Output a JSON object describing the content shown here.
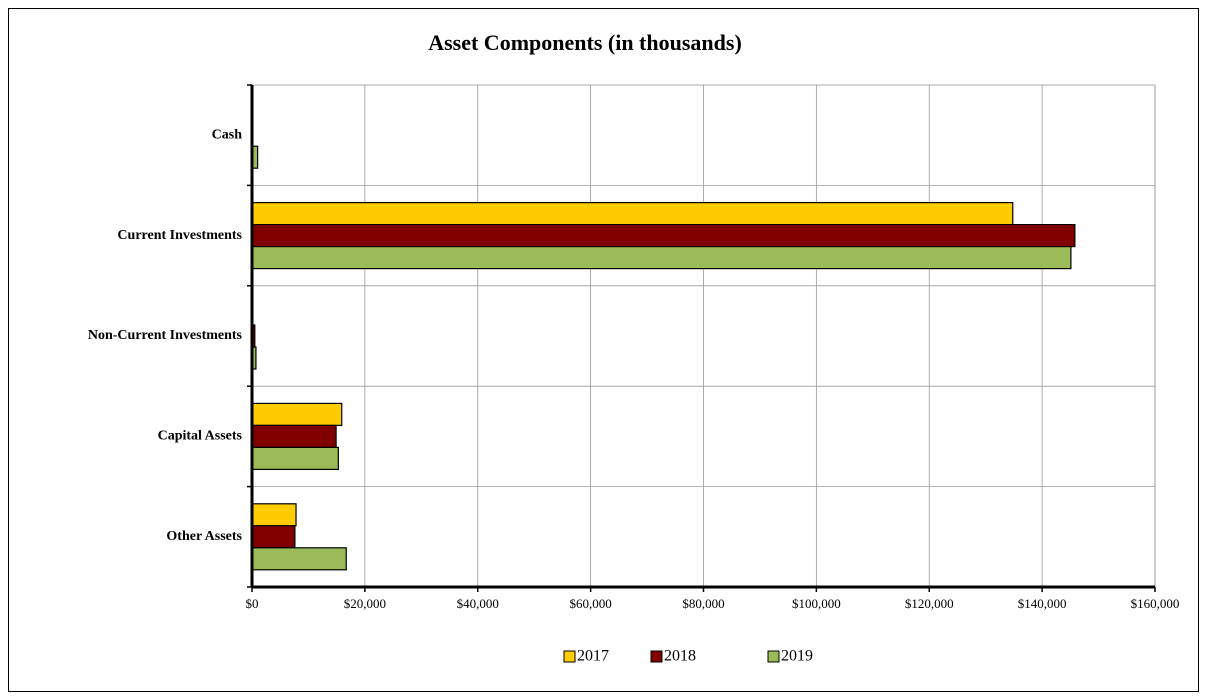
{
  "chart_data": {
    "type": "hbar",
    "title": "Asset Components (in thousands)",
    "categories": [
      "Cash",
      "Current Investments",
      "Non-Current Investments",
      "Capital Assets",
      "Other Assets"
    ],
    "series": [
      {
        "name": "2017",
        "color": "#ffcc00",
        "values": [
          0,
          134800,
          0,
          15900,
          7800
        ]
      },
      {
        "name": "2018",
        "color": "#800000",
        "values": [
          0,
          145800,
          500,
          14900,
          7600
        ]
      },
      {
        "name": "2019",
        "color": "#9bbb59",
        "values": [
          1000,
          145100,
          700,
          15300,
          16700
        ]
      }
    ],
    "xlim": [
      0,
      160000
    ],
    "xticks": [
      {
        "value": 0,
        "label": "$0"
      },
      {
        "value": 20000,
        "label": "$20,000"
      },
      {
        "value": 40000,
        "label": "$40,000"
      },
      {
        "value": 60000,
        "label": "$60,000"
      },
      {
        "value": 80000,
        "label": "$80,000"
      },
      {
        "value": 100000,
        "label": "$100,000"
      },
      {
        "value": 120000,
        "label": "$120,000"
      },
      {
        "value": 140000,
        "label": "$140,000"
      },
      {
        "value": 160000,
        "label": "$160,000"
      }
    ],
    "grid": true,
    "legend": "bottom"
  }
}
